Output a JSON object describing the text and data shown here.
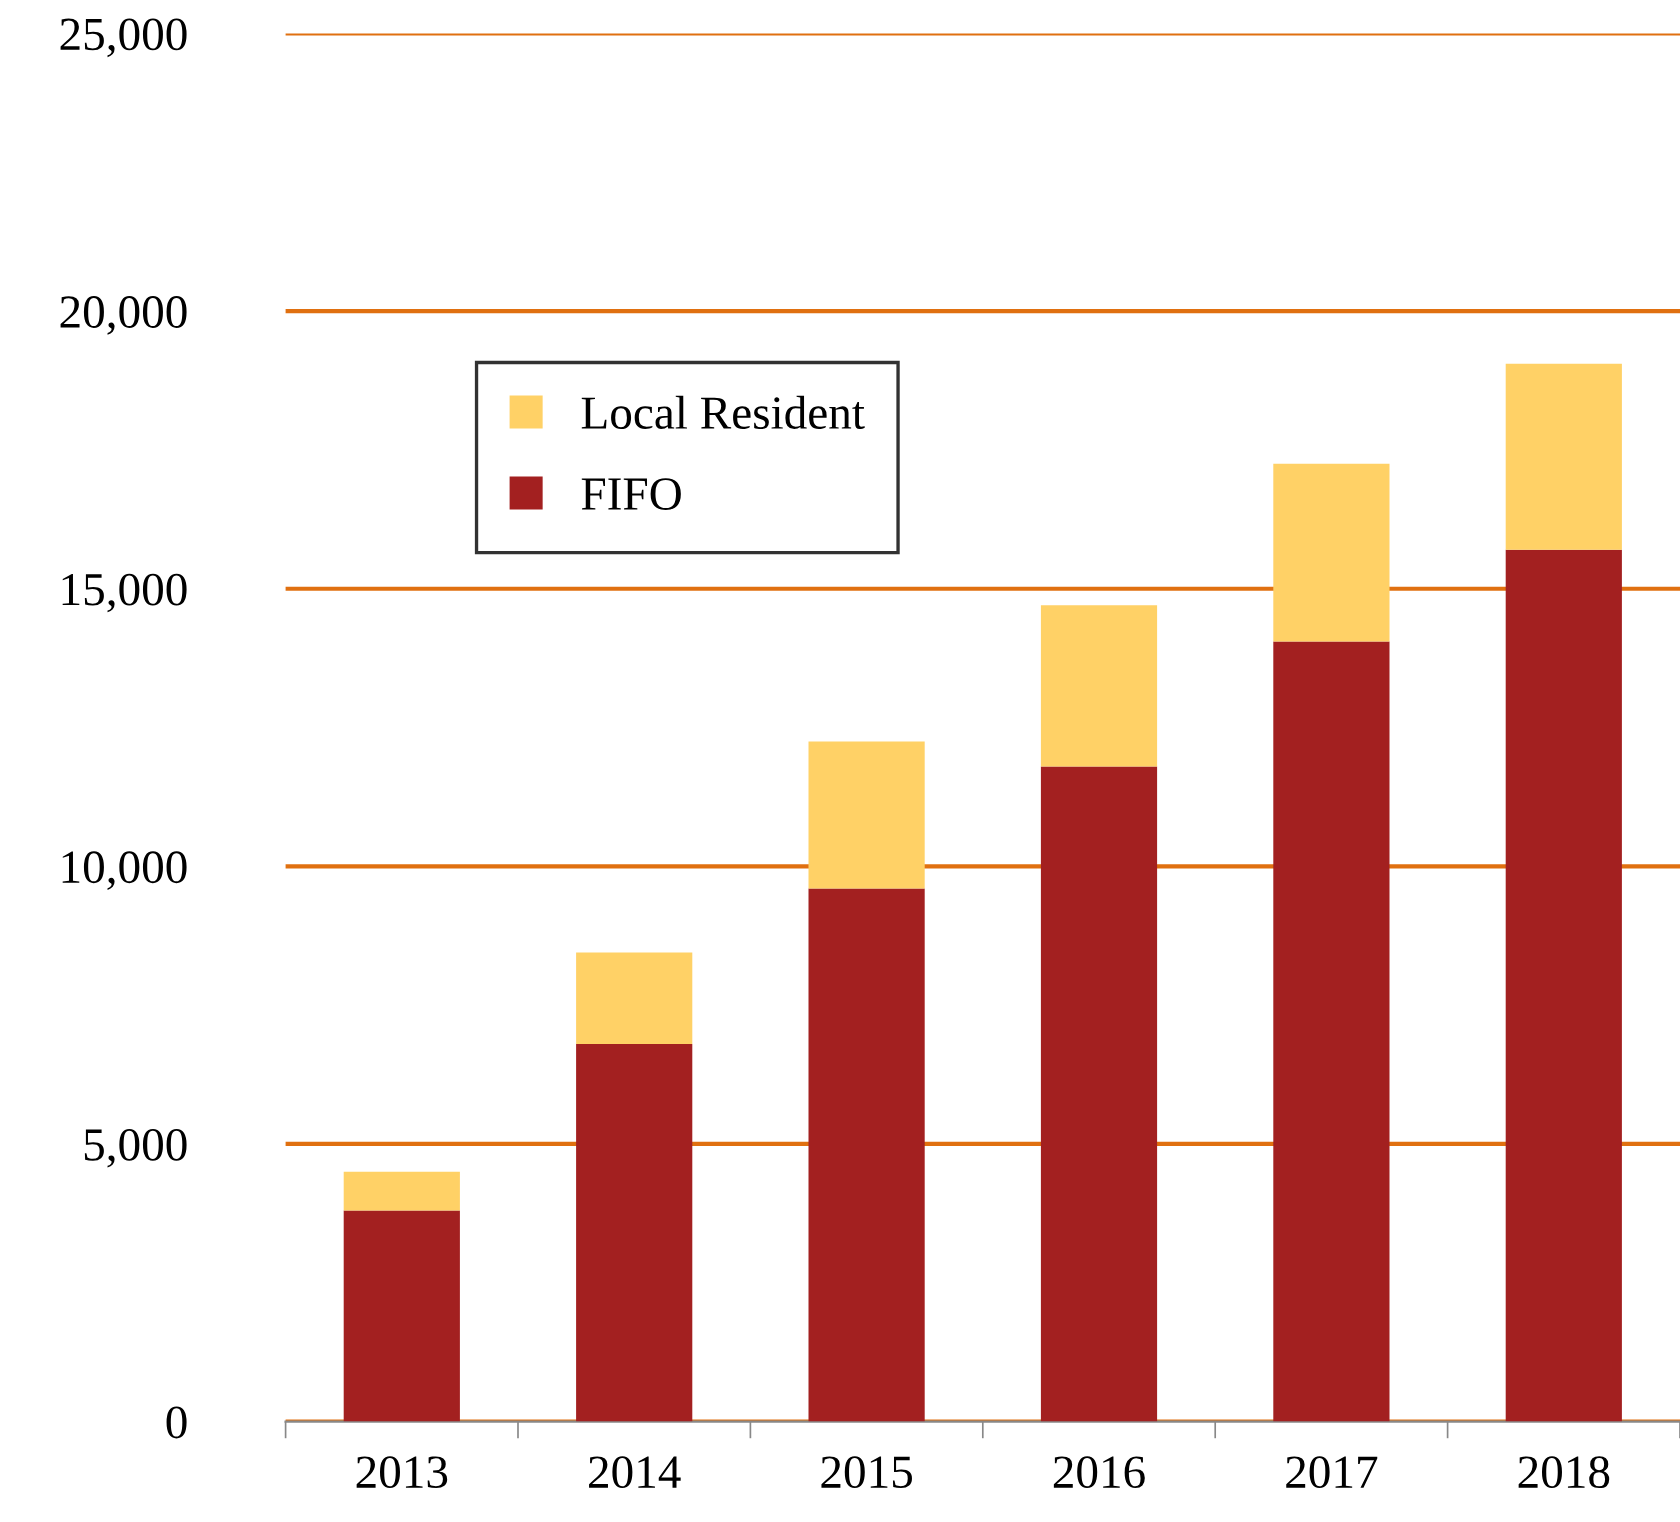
{
  "chart_data": {
    "type": "bar",
    "stacked": true,
    "categories": [
      "2013",
      "2014",
      "2015",
      "2016",
      "2017",
      "2018"
    ],
    "series": [
      {
        "name": "FIFO",
        "color": "#a32020",
        "values": [
          3800,
          6800,
          9600,
          11800,
          14050,
          15700
        ]
      },
      {
        "name": "Local Resident",
        "color": "#ffd166",
        "values": [
          700,
          1650,
          2650,
          2900,
          3200,
          3350
        ]
      }
    ],
    "ylim": [
      0,
      25000
    ],
    "yticks": [
      {
        "value": 0,
        "label": "0"
      },
      {
        "value": 5000,
        "label": "5,000"
      },
      {
        "value": 10000,
        "label": "10,000"
      },
      {
        "value": 15000,
        "label": "15,000"
      },
      {
        "value": 20000,
        "label": "20,000"
      },
      {
        "value": 25000,
        "label": "25,000"
      }
    ],
    "grid": "y",
    "legend": "top left"
  }
}
